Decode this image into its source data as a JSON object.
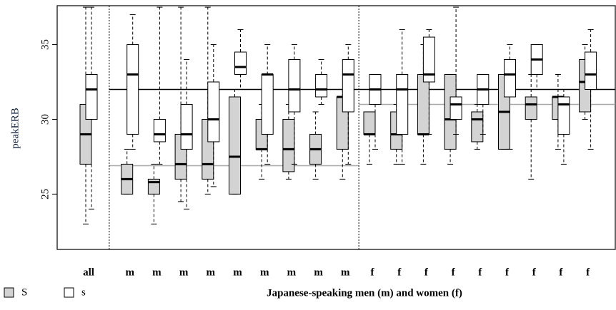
{
  "chart_data": {
    "type": "box",
    "y_label": "peakERB",
    "x_label": "Japanese-speaking men (m) and women (f)",
    "categories": [
      "all",
      "m",
      "m",
      "m",
      "m",
      "m",
      "m",
      "m",
      "m",
      "m",
      "f",
      "f",
      "f",
      "f",
      "f",
      "f",
      "f",
      "f",
      "f"
    ],
    "ylim": [
      21.3,
      37.6
    ],
    "yticks": [
      25,
      30,
      35
    ],
    "hlines": [
      {
        "value": 32,
        "color": "#000000",
        "span": [
          1,
          18
        ]
      },
      {
        "value": 26.9,
        "color": "#a8a8a8",
        "span": [
          1,
          9
        ]
      },
      {
        "value": 31,
        "color": "#a8a8a8",
        "span": [
          10,
          18
        ]
      }
    ],
    "series": [
      {
        "name": "S",
        "color": "#d3d3d3",
        "low": [
          23,
          25,
          23,
          24.5,
          25,
          25,
          26,
          26,
          26,
          26,
          27,
          27,
          27,
          27,
          28,
          28,
          26,
          28,
          30
        ],
        "q1": [
          27,
          25,
          25,
          26,
          26,
          25,
          28,
          26.5,
          27,
          28,
          29,
          28,
          29,
          28,
          28.5,
          28,
          30,
          30,
          30.5
        ],
        "median": [
          29,
          26,
          25.8,
          27,
          27,
          27.5,
          28,
          28,
          28,
          31.5,
          29,
          29,
          29,
          30,
          30,
          30.5,
          31,
          31.5,
          32.5
        ],
        "q3": [
          31,
          27,
          26,
          29,
          30,
          31.5,
          30,
          30,
          29,
          31.5,
          30.5,
          30.5,
          33,
          33,
          30.5,
          33,
          31.5,
          31.5,
          34
        ],
        "high": [
          37.5,
          28,
          27,
          37.5,
          37.5,
          32,
          31,
          31,
          30.5,
          32,
          30.5,
          31,
          35,
          33,
          31,
          33,
          33,
          33,
          35
        ]
      },
      {
        "name": "s",
        "color": "#ffffff",
        "low": [
          24,
          28,
          27,
          24,
          25.5,
          32,
          27,
          27,
          31,
          27,
          28,
          27,
          29,
          29,
          29,
          28,
          32,
          27,
          28
        ],
        "q1": [
          30,
          29,
          28.5,
          28,
          28.5,
          33,
          29,
          30.5,
          31.5,
          30.5,
          31,
          29,
          32.5,
          30,
          31,
          31.5,
          33,
          29,
          32
        ],
        "median": [
          32,
          33,
          29,
          29,
          30,
          33.5,
          33,
          32,
          32,
          33,
          32,
          32,
          33,
          31,
          32,
          33,
          34,
          31,
          33
        ],
        "q3": [
          33,
          35,
          30,
          31,
          32.5,
          34.5,
          33,
          34,
          33,
          34,
          33,
          33,
          35.5,
          31.5,
          33,
          34,
          35,
          31.5,
          34.5
        ],
        "high": [
          37.5,
          37,
          37.5,
          34,
          35,
          36,
          35,
          35,
          34,
          35,
          33,
          36,
          36,
          37.5,
          33,
          35,
          35,
          32,
          36
        ]
      }
    ]
  }
}
